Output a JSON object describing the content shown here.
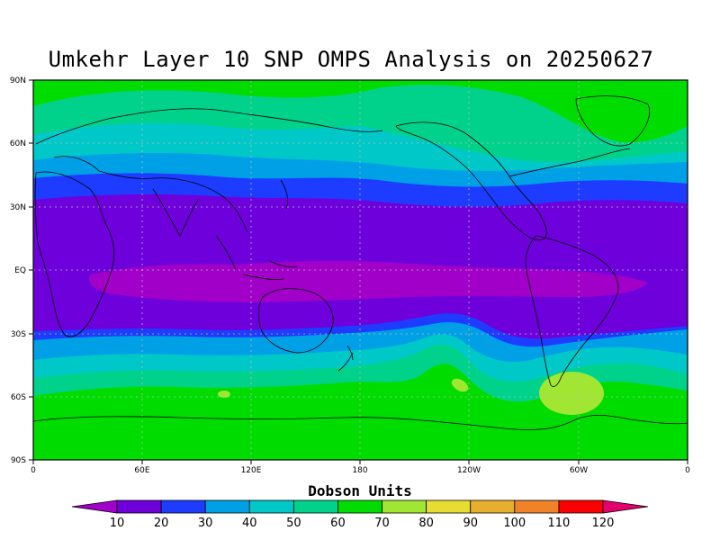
{
  "title": "Umkehr Layer 10 SNP OMPS Analysis on 20250627",
  "units_label": "Dobson Units",
  "lat_labels": [
    "90N",
    "60N",
    "30N",
    "EQ",
    "30S",
    "60S",
    "90S"
  ],
  "lon_labels": [
    "0",
    "60E",
    "120E",
    "180",
    "120W",
    "60W",
    "0"
  ],
  "colorbar": {
    "labels": [
      "10",
      "20",
      "30",
      "40",
      "50",
      "60",
      "70",
      "80",
      "90",
      "100",
      "110",
      "120"
    ],
    "colors": [
      "#a000c8",
      "#6e00dc",
      "#1e3cff",
      "#00a0e6",
      "#00c8c8",
      "#00d28c",
      "#00dc00",
      "#a0e632",
      "#e6dc32",
      "#e6af2d",
      "#f08228",
      "#fa0000",
      "#e6006e"
    ]
  },
  "chart_data": {
    "type": "heatmap",
    "title": "Umkehr Layer 10 SNP OMPS Analysis on 20250627",
    "colorbar_label": "Dobson Units",
    "contour_levels": [
      10,
      20,
      30,
      40,
      50,
      60,
      70,
      80,
      90,
      100,
      110,
      120
    ],
    "lat_range": [
      -90,
      90
    ],
    "lon_range": [
      0,
      360
    ],
    "grid": true,
    "notes_visible": {
      "tropics": "10-20 band dominant, <10 core along equator",
      "midlatitudes": "30-60 banded",
      "high_latitudes": "60-70",
      "local_maxima": "70-80 patches near southern South America and south Indian Ocean"
    }
  }
}
